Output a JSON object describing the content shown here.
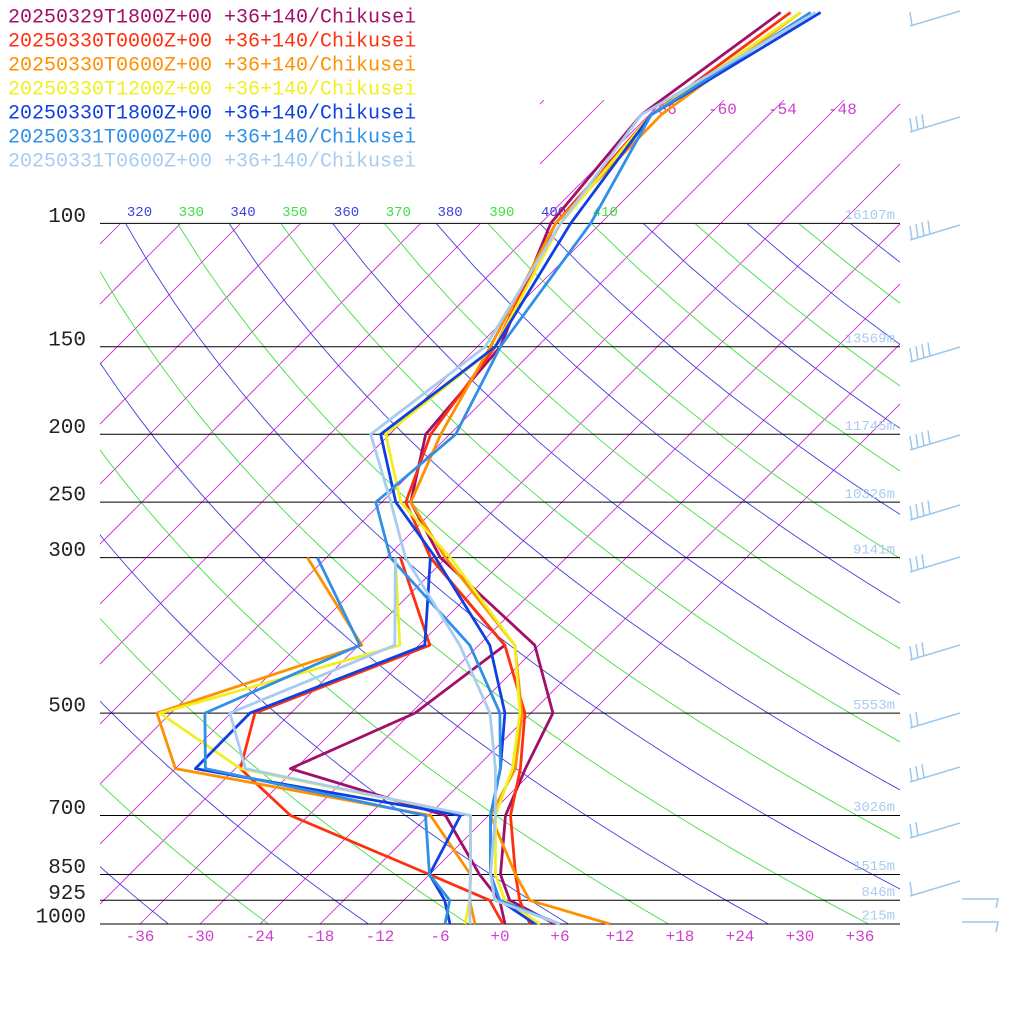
{
  "chart_data": {
    "type": "skewt",
    "ylog": true,
    "ylim": [
      1000,
      48
    ],
    "yticks": [
      100,
      150,
      200,
      250,
      300,
      500,
      700,
      850,
      925,
      1000
    ],
    "xlim": [
      -40,
      40
    ],
    "xticks": [
      -36,
      -30,
      -24,
      -18,
      -12,
      -6,
      {
        "value": 0,
        "label": "+0"
      },
      {
        "value": 6,
        "label": "+6"
      },
      {
        "value": 12,
        "label": "+12"
      },
      {
        "value": 18,
        "label": "+18"
      },
      {
        "value": 24,
        "label": "+24"
      },
      {
        "value": 30,
        "label": "+30"
      },
      {
        "value": 36,
        "label": "+36"
      }
    ],
    "theta_labels": [
      320,
      330,
      340,
      350,
      360,
      370,
      380,
      390,
      400,
      410
    ],
    "isotherm_labels": [
      -66,
      -60,
      -54,
      -48
    ],
    "heights": [
      {
        "pressure": 100,
        "label": "16107m"
      },
      {
        "pressure": 150,
        "label": "13569m"
      },
      {
        "pressure": 200,
        "label": "11745m"
      },
      {
        "pressure": 250,
        "label": "10326m"
      },
      {
        "pressure": 300,
        "label": "9141m"
      },
      {
        "pressure": 500,
        "label": "5553m"
      },
      {
        "pressure": 700,
        "label": "3026m"
      },
      {
        "pressure": 850,
        "label": "1515m"
      },
      {
        "pressure": 925,
        "label": "846m"
      },
      {
        "pressure": 1000,
        "label": "215m"
      }
    ],
    "pressure": [
      1000,
      925,
      850,
      700,
      600,
      500,
      400,
      300,
      250,
      200,
      150,
      100,
      70,
      50
    ],
    "series": [
      {
        "name": "20250329T1800Z+00 +36+140/Chikusei",
        "color": "#a0106a",
        "temperature": [
          5.5,
          -1.4,
          -4.9,
          -10.3,
          -13.0,
          -15.8,
          -24.4,
          -42.6,
          -51.1,
          -56.4,
          -57.7,
          -65.0,
          -66.8,
          -63.1
        ],
        "dewpoint": [
          0.5,
          -2.4,
          -7.0,
          -16.3,
          -36.5,
          -29.6,
          -27.4,
          -43.6,
          null,
          null,
          null,
          null,
          null,
          null
        ]
      },
      {
        "name": "20250330T0000Z+00 +36+140/Chikusei",
        "color": "#ff3010",
        "temperature": [
          3.0,
          -0.4,
          -3.4,
          -9.8,
          -13.5,
          -18.6,
          -27.4,
          -43.6,
          -51.6,
          -55.9,
          -58.2,
          -64.5,
          -65.8,
          -62.1
        ],
        "dewpoint": [
          0.3,
          -3.4,
          -12.0,
          -31.8,
          -41.5,
          -45.6,
          -34.9,
          -46.6,
          null,
          null,
          null,
          null,
          null,
          null
        ]
      },
      {
        "name": "20250330T0600Z+00 +36+140/Chikusei",
        "color": "#ff9000",
        "temperature": [
          11.0,
          0.6,
          -3.4,
          -11.8,
          -14.0,
          -18.9,
          -26.4,
          -42.1,
          -51.1,
          -54.9,
          -58.7,
          -64.5,
          -64.8,
          -61.1
        ],
        "dewpoint": [
          -2.5,
          -5.4,
          -7.9,
          -17.8,
          -48.0,
          -55.4,
          -41.7,
          -55.9,
          null,
          null,
          null,
          null,
          null,
          null
        ]
      },
      {
        "name": "20250330T1200Z+00 +36+140/Chikusei",
        "color": "#f0f020",
        "temperature": [
          4.0,
          -1.9,
          -5.4,
          -11.3,
          -14.3,
          -19.1,
          -26.4,
          -41.6,
          -52.1,
          -60.4,
          -58.2,
          -64.0,
          -65.8,
          -61.1
        ],
        "dewpoint": [
          -3.5,
          -5.4,
          -7.9,
          -13.8,
          -41.5,
          -55.1,
          -37.9,
          -47.1,
          null,
          null,
          null,
          null,
          null,
          null
        ]
      },
      {
        "name": "20250330T1800Z+00 +36+140/Chikusei",
        "color": "#1040e0",
        "temperature": [
          3.5,
          -2.4,
          -5.9,
          -11.8,
          -15.5,
          -20.6,
          -28.9,
          -43.1,
          -52.6,
          -60.9,
          -58.2,
          -63.0,
          -65.8,
          -59.1
        ],
        "dewpoint": [
          -5.0,
          -7.9,
          -12.0,
          -14.8,
          -46.0,
          -46.1,
          -35.4,
          -43.6,
          null,
          null,
          null,
          null,
          null,
          null
        ]
      },
      {
        "name": "20250331T0000Z+00 +36+140/Chikusei",
        "color": "#3090e8",
        "temperature": [
          6.0,
          -2.4,
          -5.9,
          -11.8,
          -15.5,
          -21.1,
          -30.9,
          -47.6,
          -54.6,
          -53.4,
          -57.7,
          -61.0,
          -65.8,
          -60.1
        ],
        "dewpoint": [
          -5.5,
          -7.4,
          -12.0,
          -18.3,
          -45.0,
          -50.6,
          -41.9,
          -54.9,
          null,
          null,
          null,
          null,
          null,
          null
        ]
      },
      {
        "name": "20250331T0600Z+00 +36+140/Chikusei",
        "color": "#a8ccf0",
        "temperature": [
          6.0,
          -2.9,
          -5.9,
          -11.3,
          -16.0,
          -22.1,
          -31.9,
          -46.1,
          -53.1,
          -61.9,
          -59.2,
          -64.0,
          -66.8,
          -59.6
        ],
        "dewpoint": [
          -3.0,
          -5.4,
          -7.9,
          -13.8,
          -41.0,
          -48.1,
          -38.4,
          -47.1,
          null,
          null,
          null,
          null,
          null,
          null
        ]
      }
    ]
  }
}
